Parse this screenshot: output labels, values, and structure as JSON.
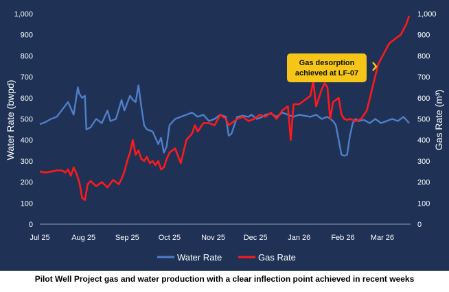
{
  "caption": "Pilot Well Project gas and water production with a clear inflection point achieved in recent weeks",
  "colors": {
    "background": "#1f3256",
    "water": "#4f7fc8",
    "gas": "#ff1a1a",
    "annotation_bg": "#f5c518",
    "annotation_arrow": "#f5c518"
  },
  "chart_data": {
    "type": "line",
    "title": "",
    "xlabel": "",
    "ylabel": "Water Rate (bwpd)",
    "y2label": "Gas Rate (m³)",
    "ylim": [
      0,
      1000
    ],
    "y2lim": [
      0,
      1000
    ],
    "yticks": [
      "0",
      "100",
      "200",
      "300",
      "400",
      "500",
      "600",
      "700",
      "800",
      "900",
      "1,000"
    ],
    "y2ticks": [
      "0",
      "100",
      "200",
      "300",
      "400",
      "500",
      "600",
      "700",
      "800",
      "900",
      "1,000"
    ],
    "xticks": [
      {
        "label": "Jul 25",
        "pos": 0
      },
      {
        "label": "Aug 25",
        "pos": 31
      },
      {
        "label": "Sep 25",
        "pos": 62
      },
      {
        "label": "Oct 25",
        "pos": 92
      },
      {
        "label": "Nov 25",
        "pos": 123
      },
      {
        "label": "Dec 25",
        "pos": 153
      },
      {
        "label": "Jan 26",
        "pos": 184
      },
      {
        "label": "Feb 26",
        "pos": 215
      },
      {
        "label": "Mar 26",
        "pos": 243
      }
    ],
    "xlim": [
      0,
      263
    ],
    "legend": [
      "Water Rate",
      "Gas Rate"
    ],
    "legend_position": "bottom",
    "annotation": "Gas desorption achieved at LF-07",
    "series": [
      {
        "name": "Water Rate",
        "axis": "left",
        "x": [
          0,
          4,
          8,
          12,
          16,
          20,
          24,
          27,
          28,
          30,
          32,
          33,
          36,
          40,
          44,
          48,
          50,
          54,
          58,
          60,
          64,
          66,
          68,
          70,
          72,
          74,
          76,
          80,
          84,
          86,
          88,
          90,
          92,
          96,
          100,
          104,
          108,
          112,
          116,
          120,
          124,
          128,
          132,
          134,
          136,
          140,
          144,
          148,
          150,
          154,
          158,
          160,
          164,
          168,
          172,
          176,
          180,
          184,
          188,
          192,
          196,
          200,
          204,
          208,
          210,
          212,
          214,
          216,
          218,
          220,
          222,
          224,
          226,
          230,
          234,
          238,
          242,
          246,
          250,
          254,
          258,
          262
        ],
        "values": [
          475,
          485,
          500,
          510,
          545,
          580,
          520,
          650,
          620,
          600,
          610,
          450,
          460,
          500,
          480,
          540,
          490,
          500,
          590,
          540,
          610,
          590,
          580,
          660,
          560,
          470,
          450,
          440,
          380,
          410,
          340,
          370,
          470,
          500,
          510,
          520,
          530,
          510,
          520,
          490,
          500,
          520,
          510,
          420,
          430,
          510,
          515,
          510,
          520,
          500,
          510,
          520,
          525,
          510,
          530,
          520,
          510,
          520,
          515,
          510,
          520,
          500,
          510,
          490,
          470,
          400,
          330,
          325,
          330,
          420,
          480,
          500,
          490,
          495,
          480,
          500,
          480,
          490,
          500,
          490,
          510,
          480
        ]
      },
      {
        "name": "Gas Rate",
        "axis": "right",
        "x": [
          0,
          4,
          8,
          12,
          16,
          18,
          20,
          22,
          24,
          26,
          28,
          30,
          32,
          34,
          36,
          40,
          44,
          48,
          52,
          56,
          58,
          60,
          62,
          64,
          66,
          68,
          70,
          72,
          74,
          76,
          78,
          80,
          82,
          84,
          86,
          88,
          90,
          92,
          96,
          100,
          104,
          108,
          110,
          112,
          116,
          120,
          124,
          128,
          132,
          134,
          136,
          140,
          144,
          148,
          152,
          156,
          160,
          164,
          168,
          172,
          176,
          178,
          180,
          184,
          188,
          192,
          194,
          196,
          198,
          200,
          202,
          204,
          206,
          208,
          210,
          212,
          214,
          216,
          218,
          220,
          224,
          228,
          232,
          236,
          240,
          244,
          248,
          252,
          256,
          260,
          262
        ],
        "values": [
          250,
          245,
          250,
          255,
          255,
          245,
          260,
          230,
          270,
          240,
          200,
          125,
          115,
          190,
          205,
          180,
          200,
          175,
          210,
          190,
          215,
          250,
          300,
          340,
          400,
          330,
          350,
          310,
          300,
          320,
          290,
          300,
          280,
          300,
          260,
          270,
          310,
          340,
          360,
          290,
          400,
          430,
          470,
          440,
          480,
          480,
          470,
          520,
          500,
          470,
          480,
          500,
          510,
          490,
          500,
          520,
          510,
          530,
          500,
          540,
          560,
          400,
          570,
          570,
          590,
          610,
          680,
          560,
          600,
          640,
          670,
          650,
          500,
          580,
          590,
          600,
          520,
          500,
          495,
          500,
          490,
          500,
          540,
          650,
          760,
          810,
          860,
          880,
          900,
          950,
          990
        ]
      }
    ]
  }
}
